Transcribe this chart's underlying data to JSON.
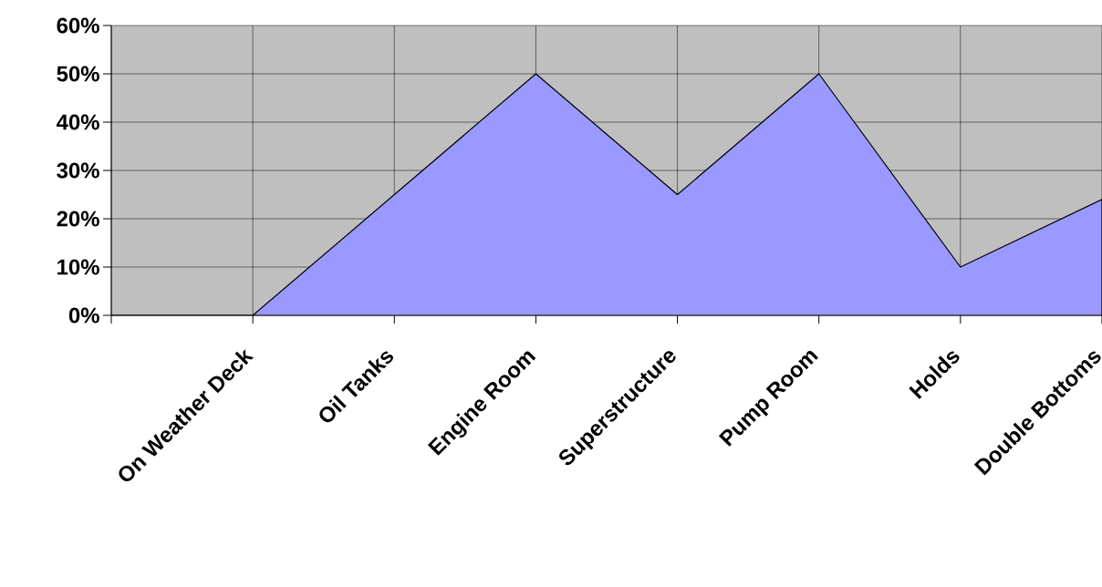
{
  "chart_data": {
    "type": "area",
    "categories": [
      null,
      "On Weather Deck",
      "Oil Tanks",
      "Engine Room",
      "Superstructure",
      "Pump Room",
      "Holds",
      "Double Bottoms"
    ],
    "values": [
      0,
      0,
      25,
      50,
      25,
      50,
      10,
      24
    ],
    "color": "#9999ff",
    "ylim": [
      0,
      60
    ],
    "yticks": [
      {
        "value": 0,
        "label": "0%"
      },
      {
        "value": 10,
        "label": "10%"
      },
      {
        "value": 20,
        "label": "20%"
      },
      {
        "value": 30,
        "label": "30%"
      },
      {
        "value": 40,
        "label": "40%"
      },
      {
        "value": 50,
        "label": "50%"
      },
      {
        "value": 60,
        "label": "60%"
      }
    ],
    "grid": true
  }
}
